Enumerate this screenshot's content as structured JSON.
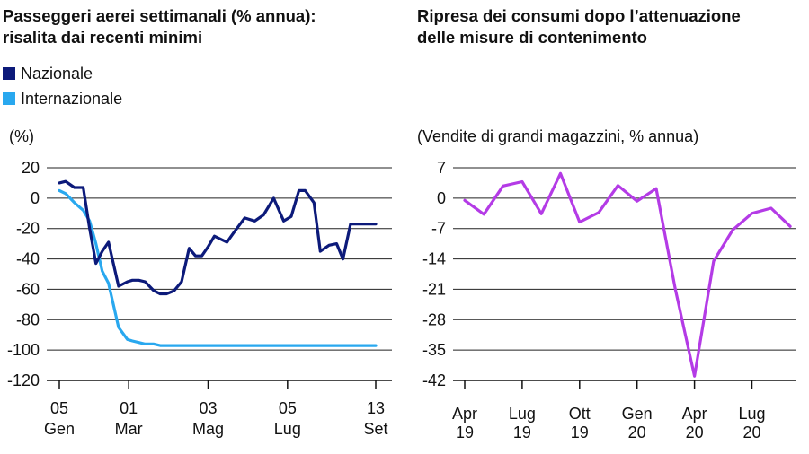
{
  "colors": {
    "nazionale": "#0c1a7a",
    "internazionale": "#29a8ef",
    "consumi": "#b43be6",
    "grid": "#222222"
  },
  "left_panel": {
    "title_line1": "Passeggeri aerei settimanali (% annua):",
    "title_line2": "risalita dai recenti minimi",
    "unit": "(%)"
  },
  "right_panel": {
    "title_line1": "Ripresa dei consumi dopo l’attenuazione",
    "title_line2": "delle misure di contenimento",
    "unit": "(Vendite di grandi magazzini, % annua)"
  },
  "chart_data": [
    {
      "type": "line",
      "title": "Passeggeri aerei settimanali (% annua): risalita dai recenti minimi",
      "ylabel": "(%)",
      "ylim": [
        -120,
        20
      ],
      "yticks": [
        20,
        0,
        -20,
        -40,
        -60,
        -80,
        -100,
        -120
      ],
      "grid": true,
      "legend_placement": "top-left",
      "x_ticks": [
        {
          "day": 5,
          "l1": "05",
          "l2": "Gen"
        },
        {
          "day": 60,
          "l1": "01",
          "l2": "Mar"
        },
        {
          "day": 123,
          "l1": "03",
          "l2": "Mag"
        },
        {
          "day": 186,
          "l1": "05",
          "l2": "Lug"
        },
        {
          "day": 256,
          "l1": "13",
          "l2": "Set"
        }
      ],
      "series": [
        {
          "name": "Nazionale",
          "x": [
            5,
            10,
            17,
            24,
            29,
            34,
            39,
            44,
            52,
            59,
            63,
            68,
            73,
            80,
            85,
            90,
            96,
            102,
            108,
            113,
            118,
            123,
            128,
            133,
            138,
            144,
            152,
            160,
            167,
            175,
            183,
            189,
            195,
            200,
            207,
            212,
            219,
            225,
            230,
            236,
            241,
            246,
            251,
            256
          ],
          "y": [
            10,
            11,
            7,
            7,
            -20,
            -43,
            -35,
            -29,
            -58,
            -55,
            -54,
            -54,
            -55,
            -61,
            -63,
            -63,
            -61,
            -55,
            -33,
            -38,
            -38,
            -32,
            -25,
            -27,
            -29,
            -22,
            -13,
            -15,
            -11,
            0,
            -15,
            -12,
            5,
            5,
            -3,
            -35,
            -31,
            -30,
            -40,
            -17,
            -17,
            -17,
            -17,
            -17
          ]
        },
        {
          "name": "Internazionale",
          "x": [
            5,
            10,
            17,
            24,
            29,
            34,
            39,
            44,
            52,
            59,
            63,
            68,
            73,
            80,
            85,
            90,
            96,
            102,
            108,
            113,
            118,
            123,
            128,
            133,
            138,
            144,
            152,
            160,
            167,
            175,
            183,
            189,
            195,
            200,
            207,
            212,
            219,
            225,
            230,
            236,
            241,
            246,
            251,
            256
          ],
          "y": [
            5,
            3,
            -3,
            -8,
            -15,
            -30,
            -48,
            -56,
            -85,
            -93,
            -94,
            -95,
            -96,
            -96,
            -97,
            -97,
            -97,
            -97,
            -97,
            -97,
            -97,
            -97,
            -97,
            -97,
            -97,
            -97,
            -97,
            -97,
            -97,
            -97,
            -97,
            -97,
            -97,
            -97,
            -97,
            -97,
            -97,
            -97,
            -97,
            -97,
            -97,
            -97,
            -97,
            -97
          ]
        }
      ]
    },
    {
      "type": "line",
      "title": "Ripresa dei consumi dopo l’attenuazione delle misure di contenimento",
      "ylabel": "(Vendite di grandi magazzini, % annua)",
      "ylim": [
        -42,
        7
      ],
      "yticks": [
        7,
        0,
        -7,
        -14,
        -21,
        -28,
        -35,
        -42
      ],
      "grid": true,
      "x_ticks": [
        {
          "m": 0,
          "l1": "Apr",
          "l2": "19"
        },
        {
          "m": 3,
          "l1": "Lug",
          "l2": "19"
        },
        {
          "m": 6,
          "l1": "Ott",
          "l2": "19"
        },
        {
          "m": 9,
          "l1": "Gen",
          "l2": "20"
        },
        {
          "m": 12,
          "l1": "Apr",
          "l2": "20"
        },
        {
          "m": 15,
          "l1": "Lug",
          "l2": "20"
        }
      ],
      "series": [
        {
          "x": [
            "2019-04",
            "2019-05",
            "2019-06",
            "2019-07",
            "2019-08",
            "2019-09",
            "2019-10",
            "2019-11",
            "2019-12",
            "2020-01",
            "2020-02",
            "2020-03",
            "2020-04",
            "2020-05",
            "2020-06",
            "2020-07",
            "2020-08",
            "2020-09"
          ],
          "y": [
            -0.5,
            -3.7,
            2.8,
            3.8,
            -3.6,
            5.7,
            -5.5,
            -3.3,
            2.9,
            -0.7,
            2.2,
            -21,
            -41,
            -14.5,
            -7.3,
            -3.5,
            -2.3,
            -6.5
          ]
        }
      ]
    }
  ]
}
